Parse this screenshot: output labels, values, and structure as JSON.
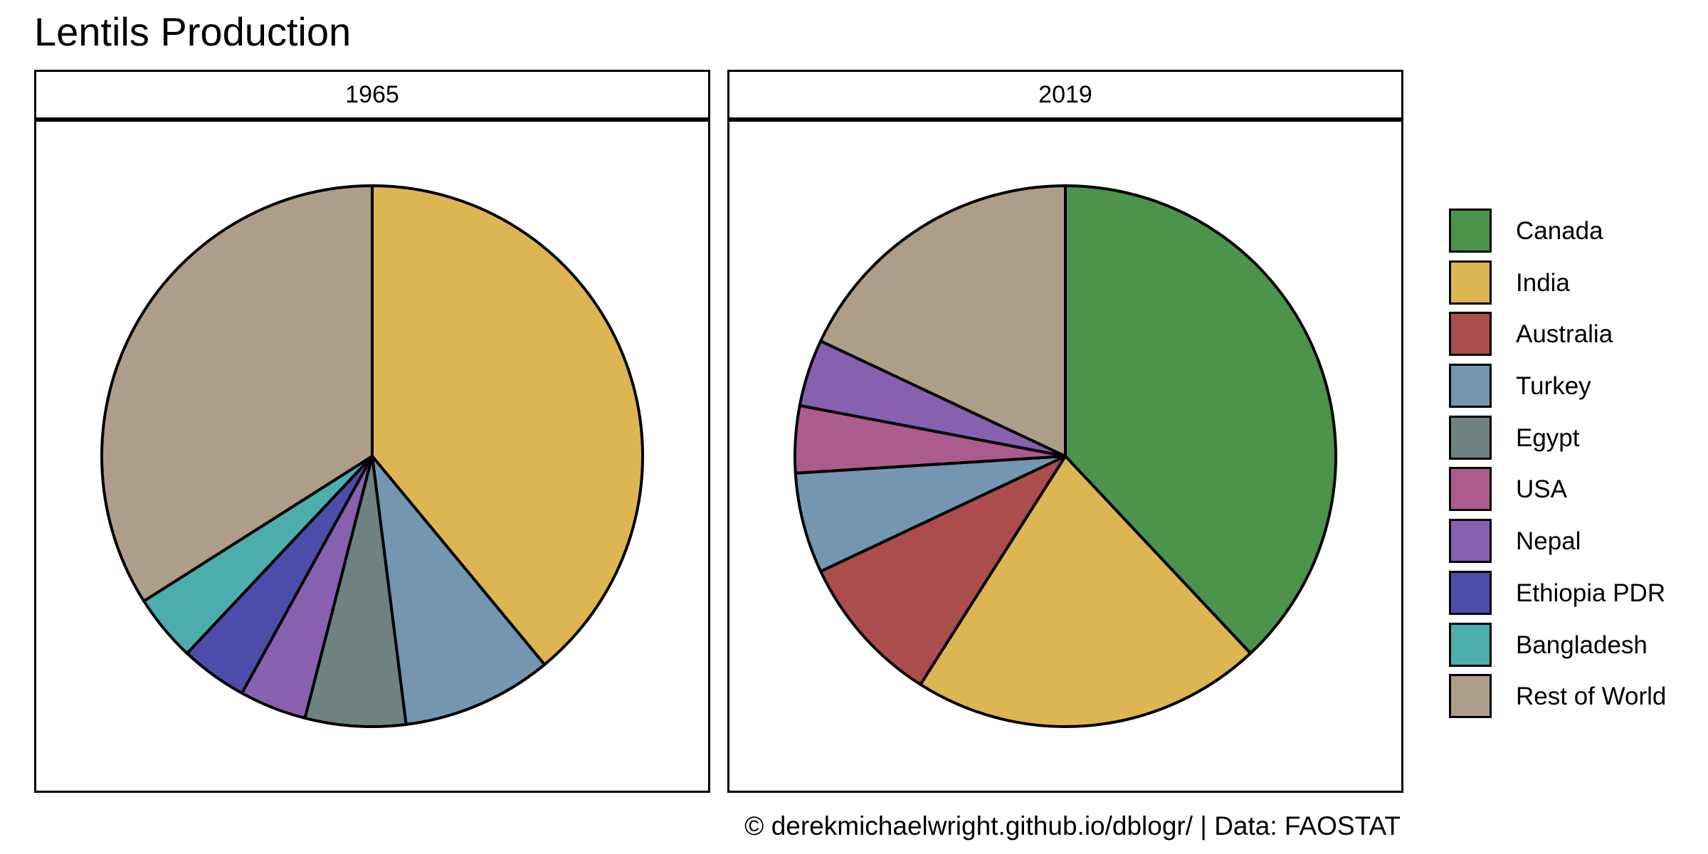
{
  "title": "Lentils Production",
  "caption": "© derekmichaelwright.github.io/dblogr/ | Data: FAOSTAT",
  "chart_data": [
    {
      "type": "pie",
      "panel": "1965",
      "title": "1965",
      "slices": [
        {
          "label": "India",
          "value": 39.0
        },
        {
          "label": "Turkey",
          "value": 9.0
        },
        {
          "label": "Egypt",
          "value": 6.0
        },
        {
          "label": "Nepal",
          "value": 4.0
        },
        {
          "label": "Ethiopia PDR",
          "value": 4.0
        },
        {
          "label": "Bangladesh",
          "value": 4.0
        },
        {
          "label": "Rest of World",
          "value": 34.0
        }
      ]
    },
    {
      "type": "pie",
      "panel": "2019",
      "title": "2019",
      "slices": [
        {
          "label": "Canada",
          "value": 38.0
        },
        {
          "label": "India",
          "value": 21.0
        },
        {
          "label": "Australia",
          "value": 9.0
        },
        {
          "label": "Turkey",
          "value": 6.0
        },
        {
          "label": "USA",
          "value": 4.0
        },
        {
          "label": "Nepal",
          "value": 4.0
        },
        {
          "label": "Rest of World",
          "value": 18.0
        }
      ]
    }
  ],
  "legend": {
    "position": "right",
    "items": [
      {
        "label": "Canada",
        "color": "#4c934c"
      },
      {
        "label": "India",
        "color": "#ddb553"
      },
      {
        "label": "Australia",
        "color": "#ac4d4d"
      },
      {
        "label": "Turkey",
        "color": "#7596b1"
      },
      {
        "label": "Egypt",
        "color": "#6e8282"
      },
      {
        "label": "USA",
        "color": "#ac5c8c"
      },
      {
        "label": "Nepal",
        "color": "#8860b0"
      },
      {
        "label": "Ethiopia PDR",
        "color": "#4e4cab"
      },
      {
        "label": "Bangladesh",
        "color": "#4baeac"
      },
      {
        "label": "Rest of World",
        "color": "#ae9e89"
      }
    ]
  }
}
